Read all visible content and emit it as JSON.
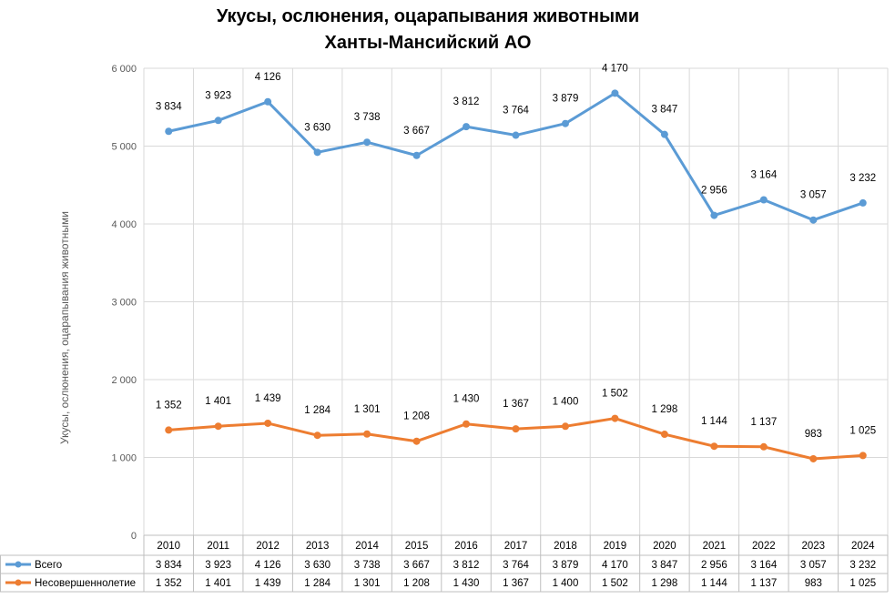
{
  "chart_data": {
    "type": "line",
    "title": "Укусы, ослюнения, оцарапывания животными",
    "subtitle": "Ханты-Мансийский АО",
    "ylabel": "Укусы, ослюнения, оцарапывания животными",
    "xlabel": "",
    "ylim": [
      0,
      6000
    ],
    "yticks": [
      0,
      1000,
      2000,
      3000,
      4000,
      5000,
      6000
    ],
    "ytick_labels": [
      "0",
      "1 000",
      "2 000",
      "3 000",
      "4 000",
      "5 000",
      "6 000"
    ],
    "grid": true,
    "legend": "data-table-bottom",
    "categories": [
      "2010",
      "2011",
      "2012",
      "2013",
      "2014",
      "2015",
      "2016",
      "2017",
      "2018",
      "2019",
      "2020",
      "2021",
      "2022",
      "2023",
      "2024"
    ],
    "series": [
      {
        "name": "Всего",
        "color": "#5B9BD5",
        "values": [
          3834,
          3923,
          4126,
          3630,
          3738,
          3667,
          3812,
          3764,
          3879,
          4170,
          3847,
          2956,
          3164,
          3057,
          3232
        ],
        "labels": [
          "3 834",
          "3 923",
          "4 126",
          "3 630",
          "3 738",
          "3 667",
          "3 812",
          "3 764",
          "3 879",
          "4 170",
          "3 847",
          "2 956",
          "3 164",
          "3 057",
          "3 232"
        ],
        "plotted_values": [
          5190,
          5330,
          5570,
          4920,
          5050,
          4880,
          5250,
          5140,
          5290,
          5680,
          5150,
          4110,
          4310,
          4050,
          4270
        ]
      },
      {
        "name": "Несовершеннолетие",
        "color": "#ED7D31",
        "values": [
          1352,
          1401,
          1439,
          1284,
          1301,
          1208,
          1430,
          1367,
          1400,
          1502,
          1298,
          1144,
          1137,
          983,
          1025
        ],
        "labels": [
          "1 352",
          "1 401",
          "1 439",
          "1 284",
          "1 301",
          "1 208",
          "1 430",
          "1 367",
          "1 400",
          "1 502",
          "1 298",
          "1 144",
          "1 137",
          "983",
          "1 025"
        ]
      }
    ]
  }
}
